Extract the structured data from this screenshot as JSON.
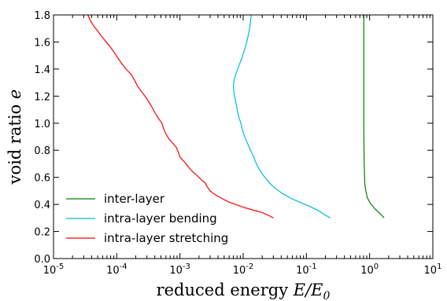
{
  "chart_data": {
    "type": "line",
    "xscale": "log",
    "xlim": [
      1e-05,
      10
    ],
    "ylim": [
      0.0,
      1.8
    ],
    "grid": false,
    "legend_position": "bottom-left",
    "xlabel_text": "reduced energy ",
    "xlabel_math": "E/E",
    "xlabel_sub": "0",
    "ylabel_text": "void ratio ",
    "ylabel_math": "e",
    "x_ticks": [
      {
        "value": 1e-05,
        "base": "10",
        "exp": "-5"
      },
      {
        "value": 0.0001,
        "base": "10",
        "exp": "-4"
      },
      {
        "value": 0.001,
        "base": "10",
        "exp": "-3"
      },
      {
        "value": 0.01,
        "base": "10",
        "exp": "-2"
      },
      {
        "value": 0.1,
        "base": "10",
        "exp": "-1"
      },
      {
        "value": 1,
        "base": "10",
        "exp": "0"
      },
      {
        "value": 10,
        "base": "10",
        "exp": "1"
      }
    ],
    "y_ticks": [
      "0.0",
      "0.2",
      "0.4",
      "0.6",
      "0.8",
      "1.0",
      "1.2",
      "1.4",
      "1.6",
      "1.8"
    ],
    "series": [
      {
        "name": "inter-layer",
        "color": "#008000",
        "points": [
          [
            1.7,
            0.3
          ],
          [
            1.55,
            0.32
          ],
          [
            1.4,
            0.34
          ],
          [
            1.2,
            0.37
          ],
          [
            1.02,
            0.41
          ],
          [
            0.92,
            0.45
          ],
          [
            0.87,
            0.5
          ],
          [
            0.84,
            0.55
          ],
          [
            0.83,
            0.62
          ],
          [
            0.82,
            0.7
          ],
          [
            0.815,
            0.8
          ],
          [
            0.81,
            0.95
          ],
          [
            0.81,
            1.1
          ],
          [
            0.81,
            1.3
          ],
          [
            0.81,
            1.5
          ],
          [
            0.81,
            1.7
          ],
          [
            0.81,
            1.8
          ]
        ]
      },
      {
        "name": "intra-layer bending",
        "color": "#00bcd4",
        "points": [
          [
            0.24,
            0.3
          ],
          [
            0.2,
            0.32
          ],
          [
            0.16,
            0.35
          ],
          [
            0.12,
            0.38
          ],
          [
            0.085,
            0.41
          ],
          [
            0.06,
            0.44
          ],
          [
            0.042,
            0.48
          ],
          [
            0.032,
            0.52
          ],
          [
            0.026,
            0.56
          ],
          [
            0.022,
            0.6
          ],
          [
            0.019,
            0.64
          ],
          [
            0.017,
            0.68
          ],
          [
            0.0155,
            0.72
          ],
          [
            0.0145,
            0.76
          ],
          [
            0.013,
            0.8
          ],
          [
            0.012,
            0.84
          ],
          [
            0.011,
            0.88
          ],
          [
            0.0102,
            0.92
          ],
          [
            0.0096,
            0.96
          ],
          [
            0.0092,
            1.0
          ],
          [
            0.0086,
            1.04
          ],
          [
            0.0082,
            1.08
          ],
          [
            0.0079,
            1.12
          ],
          [
            0.0076,
            1.16
          ],
          [
            0.0073,
            1.2
          ],
          [
            0.0071,
            1.24
          ],
          [
            0.007,
            1.28
          ],
          [
            0.0072,
            1.32
          ],
          [
            0.0076,
            1.36
          ],
          [
            0.0082,
            1.4
          ],
          [
            0.0088,
            1.44
          ],
          [
            0.0095,
            1.48
          ],
          [
            0.0101,
            1.52
          ],
          [
            0.0108,
            1.56
          ],
          [
            0.0114,
            1.6
          ],
          [
            0.0119,
            1.64
          ],
          [
            0.0124,
            1.68
          ],
          [
            0.0128,
            1.72
          ],
          [
            0.0131,
            1.76
          ],
          [
            0.0134,
            1.8
          ]
        ]
      },
      {
        "name": "intra-layer stretching",
        "color": "#ff0000",
        "points": [
          [
            0.03,
            0.3
          ],
          [
            0.025,
            0.32
          ],
          [
            0.02,
            0.34
          ],
          [
            0.014,
            0.36
          ],
          [
            0.01,
            0.38
          ],
          [
            0.0075,
            0.4
          ],
          [
            0.0058,
            0.42
          ],
          [
            0.0048,
            0.44
          ],
          [
            0.004,
            0.46
          ],
          [
            0.0034,
            0.48
          ],
          [
            0.003,
            0.5
          ],
          [
            0.0027,
            0.53
          ],
          [
            0.0025,
            0.56
          ],
          [
            0.0022,
            0.58
          ],
          [
            0.002,
            0.6
          ],
          [
            0.0018,
            0.62
          ],
          [
            0.0016,
            0.64
          ],
          [
            0.0014,
            0.67
          ],
          [
            0.0012,
            0.71
          ],
          [
            0.001,
            0.75
          ],
          [
            0.00095,
            0.78
          ],
          [
            0.00088,
            0.82
          ],
          [
            0.00078,
            0.85
          ],
          [
            0.00068,
            0.88
          ],
          [
            0.0006,
            0.92
          ],
          [
            0.00055,
            0.96
          ],
          [
            0.00052,
            1.0
          ],
          [
            0.00045,
            1.04
          ],
          [
            0.0004,
            1.08
          ],
          [
            0.00036,
            1.12
          ],
          [
            0.00032,
            1.16
          ],
          [
            0.00028,
            1.2
          ],
          [
            0.00024,
            1.24
          ],
          [
            0.00021,
            1.28
          ],
          [
            0.00019,
            1.32
          ],
          [
            0.00017,
            1.36
          ],
          [
            0.00014,
            1.4
          ],
          [
            0.00012,
            1.44
          ],
          [
            0.000105,
            1.48
          ],
          [
            9.2e-05,
            1.52
          ],
          [
            8e-05,
            1.56
          ],
          [
            6.8e-05,
            1.6
          ],
          [
            5.8e-05,
            1.64
          ],
          [
            5e-05,
            1.68
          ],
          [
            4.3e-05,
            1.72
          ],
          [
            3.8e-05,
            1.76
          ],
          [
            3.5e-05,
            1.8
          ]
        ]
      }
    ]
  }
}
